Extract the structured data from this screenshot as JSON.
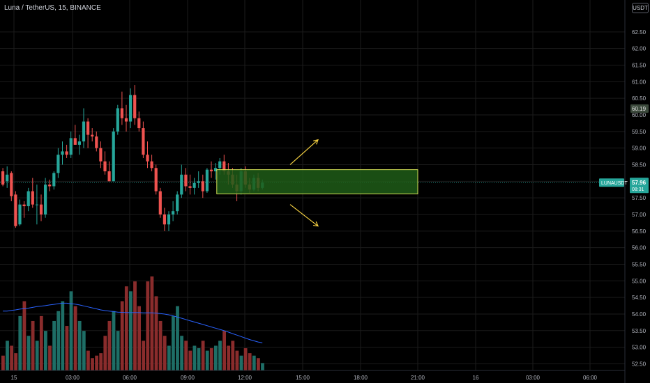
{
  "header": {
    "title": "Luna / TetherUS, 15, BINANCE",
    "currency_badge": "USDT"
  },
  "colors": {
    "up": "#26a69a",
    "down": "#ef5350",
    "up_volume": "#1e6e66",
    "down_volume": "#8a2c2c",
    "volume_ma": "#2962ff",
    "zone_fill": "#1e5c17",
    "zone_border": "#d4e157",
    "arrows": "#f5d142",
    "grid": "#1b1b1b",
    "last_price_label": "#26a69a",
    "marker_label": "#3c4a3c"
  },
  "chart_data": {
    "type": "candlestick",
    "symbol": "LUNAUSDT",
    "y_ticks": [
      "62.50",
      "62.00",
      "61.50",
      "61.00",
      "60.50",
      "60.00",
      "59.50",
      "59.00",
      "58.50",
      "58.00",
      "57.50",
      "57.00",
      "56.50",
      "56.00",
      "55.50",
      "55.00",
      "54.50",
      "54.00",
      "53.50",
      "53.00",
      "52.50"
    ],
    "ylim": [
      52.3,
      63.0
    ],
    "x_ticks": [
      "15",
      "03:00",
      "06:00",
      "09:00",
      "12:00",
      "15:00",
      "18:00",
      "21:00",
      "16",
      "03:00",
      "06:00"
    ],
    "last_price": "57.96",
    "countdown": "08:31",
    "marker_price": "60.19",
    "series": [
      {
        "name": "price",
        "candles": [
          [
            58.3,
            58.4,
            57.85,
            57.9
          ],
          [
            58.0,
            58.45,
            57.8,
            58.2
          ],
          [
            58.25,
            58.3,
            57.4,
            57.55
          ],
          [
            57.6,
            57.7,
            56.6,
            56.65
          ],
          [
            56.7,
            57.45,
            56.65,
            57.3
          ],
          [
            57.3,
            57.4,
            56.9,
            57.25
          ],
          [
            57.25,
            57.8,
            57.1,
            57.7
          ],
          [
            57.7,
            58.1,
            57.2,
            57.3
          ],
          [
            57.3,
            57.9,
            56.7,
            57.3
          ],
          [
            57.3,
            57.6,
            56.8,
            57.0
          ],
          [
            57.0,
            58.1,
            56.9,
            57.9
          ],
          [
            57.9,
            58.05,
            57.7,
            57.85
          ],
          [
            57.85,
            58.3,
            57.75,
            58.25
          ],
          [
            58.25,
            59.0,
            58.1,
            58.8
          ],
          [
            58.8,
            59.2,
            58.5,
            58.9
          ],
          [
            58.9,
            59.1,
            58.7,
            58.8
          ],
          [
            58.8,
            59.5,
            58.7,
            59.3
          ],
          [
            59.3,
            59.7,
            59.1,
            59.1
          ],
          [
            59.1,
            59.4,
            58.8,
            59.2
          ],
          [
            59.2,
            60.2,
            59.0,
            59.8
          ],
          [
            59.8,
            59.9,
            59.0,
            59.4
          ],
          [
            59.4,
            59.6,
            59.2,
            59.35
          ],
          [
            59.35,
            59.5,
            58.9,
            59.0
          ],
          [
            59.0,
            59.2,
            58.4,
            58.6
          ],
          [
            58.6,
            58.9,
            58.2,
            58.3
          ],
          [
            58.3,
            58.6,
            58.0,
            58.0
          ],
          [
            58.0,
            59.6,
            58.0,
            59.5
          ],
          [
            59.5,
            60.3,
            59.4,
            60.2
          ],
          [
            60.2,
            60.7,
            59.7,
            59.9
          ],
          [
            59.9,
            60.3,
            59.5,
            59.8
          ],
          [
            59.8,
            60.8,
            59.6,
            60.6
          ],
          [
            60.6,
            60.9,
            59.7,
            59.9
          ],
          [
            59.9,
            60.1,
            59.5,
            59.6
          ],
          [
            59.6,
            59.8,
            58.7,
            58.8
          ],
          [
            58.8,
            59.2,
            58.4,
            58.6
          ],
          [
            58.6,
            58.8,
            58.3,
            58.4
          ],
          [
            58.4,
            58.5,
            57.6,
            57.7
          ],
          [
            57.7,
            57.8,
            56.9,
            57.0
          ],
          [
            57.0,
            57.2,
            56.5,
            56.7
          ],
          [
            56.7,
            57.1,
            56.5,
            57.0
          ],
          [
            57.0,
            57.4,
            56.8,
            57.1
          ],
          [
            57.1,
            57.7,
            57.0,
            57.6
          ],
          [
            57.6,
            58.5,
            57.5,
            58.2
          ],
          [
            58.2,
            58.4,
            57.7,
            57.85
          ],
          [
            57.85,
            58.2,
            57.6,
            57.8
          ],
          [
            57.8,
            58.1,
            57.6,
            57.95
          ],
          [
            57.95,
            58.3,
            57.8,
            58.0
          ],
          [
            58.0,
            58.2,
            57.5,
            57.7
          ],
          [
            57.7,
            58.4,
            57.65,
            58.35
          ],
          [
            58.35,
            58.6,
            58.1,
            58.3
          ],
          [
            58.3,
            58.55,
            58.05,
            58.4
          ],
          [
            58.4,
            58.7,
            58.2,
            58.6
          ],
          [
            58.6,
            58.8,
            58.2,
            58.3
          ],
          [
            58.3,
            58.55,
            57.9,
            58.2
          ],
          [
            58.2,
            58.4,
            57.8,
            57.9
          ],
          [
            57.9,
            58.2,
            57.4,
            57.7
          ],
          [
            57.7,
            58.4,
            57.6,
            58.3
          ],
          [
            58.3,
            58.45,
            57.8,
            57.9
          ],
          [
            57.9,
            58.1,
            57.65,
            57.75
          ],
          [
            57.75,
            58.2,
            57.7,
            58.1
          ],
          [
            58.1,
            58.25,
            57.7,
            57.8
          ],
          [
            57.8,
            58.05,
            57.75,
            57.96
          ]
        ]
      },
      {
        "name": "volume",
        "values": [
          6,
          12,
          10,
          7,
          22,
          28,
          14,
          20,
          12,
          22,
          16,
          10,
          20,
          24,
          28,
          18,
          32,
          26,
          20,
          16,
          8,
          5,
          6,
          7,
          14,
          20,
          24,
          16,
          28,
          34,
          32,
          36,
          26,
          12,
          36,
          38,
          30,
          20,
          14,
          10,
          22,
          26,
          14,
          12,
          8,
          10,
          9,
          12,
          8,
          9,
          10,
          12,
          16,
          10,
          12,
          8,
          6,
          9,
          7,
          6,
          5,
          3
        ]
      },
      {
        "name": "volume_ma",
        "values": [
          24,
          24,
          24.3,
          24.5,
          24.8,
          25,
          25.2,
          25.5,
          25.8,
          26,
          26.2,
          26.5,
          26.7,
          27,
          27.2,
          27.2,
          27,
          26.8,
          26.5,
          26.1,
          25.7,
          25.3,
          24.9,
          24.5,
          24.2,
          24,
          23.8,
          23.6,
          23.5,
          23.4,
          23.4,
          23.4,
          23.4,
          23.3,
          23.3,
          23.3,
          23.2,
          23,
          22.8,
          22.5,
          22.1,
          21.6,
          21.1,
          20.6,
          20.1,
          19.6,
          19.1,
          18.6,
          18.1,
          17.6,
          17.1,
          16.6,
          16.1,
          15.5,
          14.9,
          14.3,
          13.7,
          13.1,
          12.5,
          12,
          11.5,
          11.2
        ]
      }
    ],
    "zone": {
      "price_high": 58.35,
      "price_low": 57.62,
      "start_candle": 48,
      "end_time_label": "21:00"
    },
    "arrows": [
      {
        "direction": "up",
        "from_price": 58.5,
        "to_price": 59.25
      },
      {
        "direction": "down",
        "from_price": 57.3,
        "to_price": 56.65
      }
    ]
  }
}
